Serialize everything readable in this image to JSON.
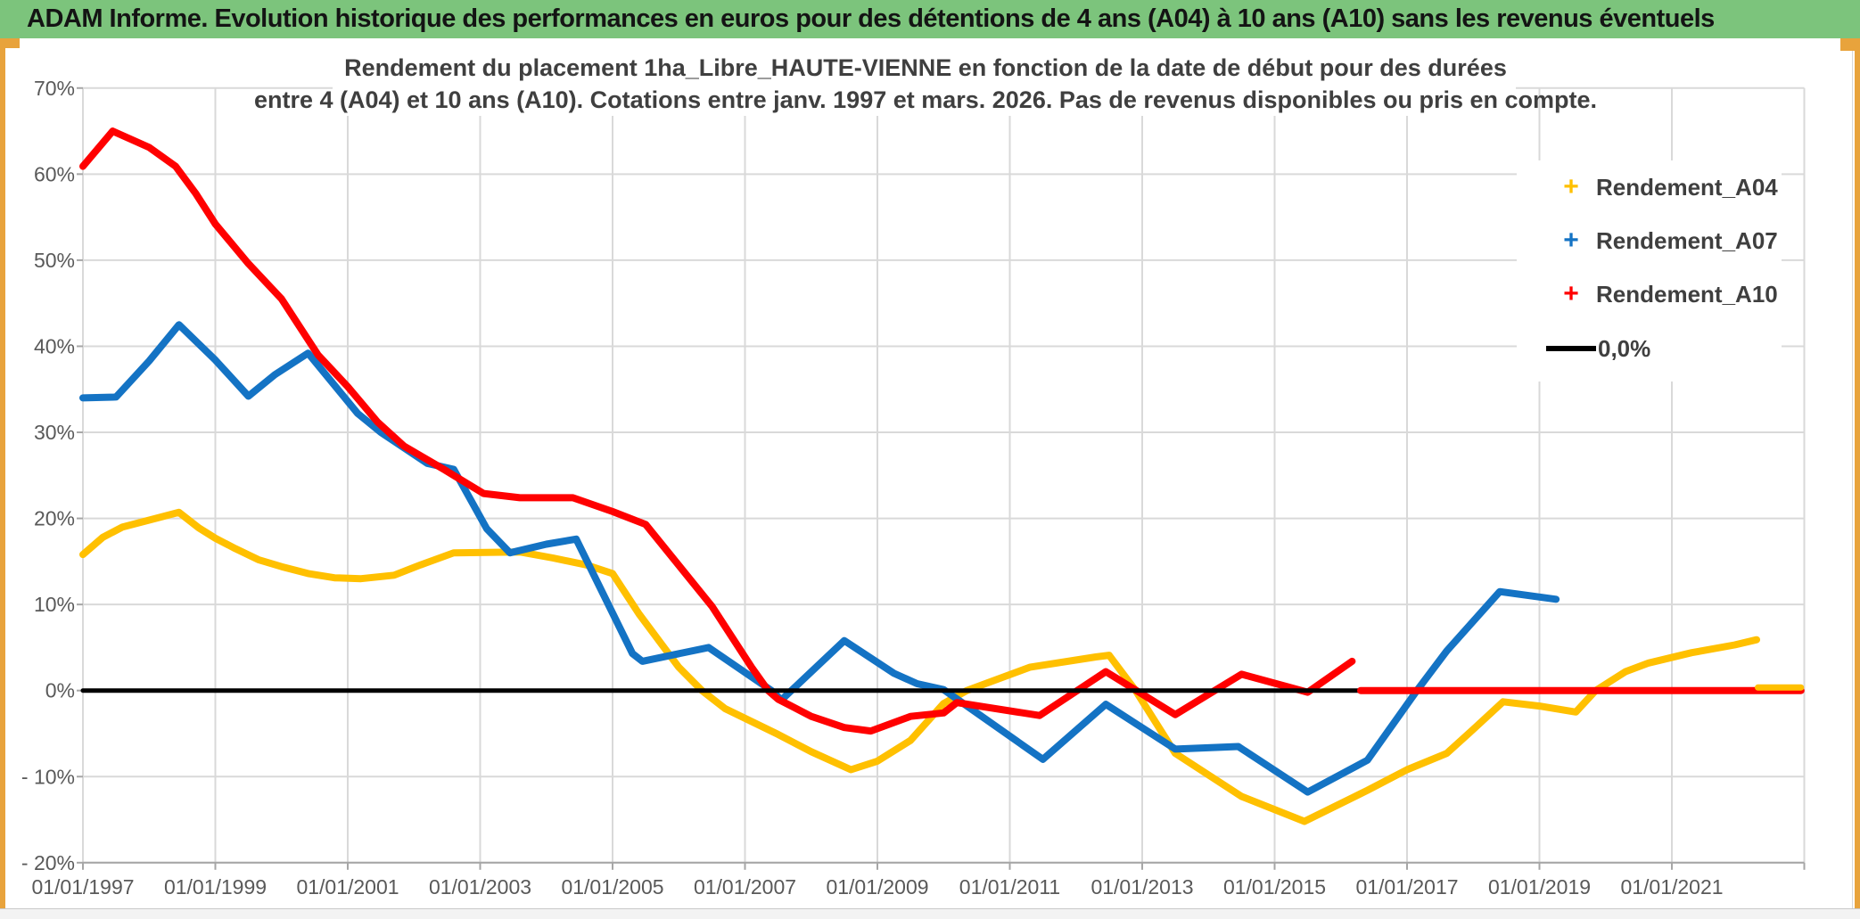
{
  "header": {
    "title": "ADAM Informe. Evolution historique des performances en euros pour des détentions de 4 ans (A04) à 10 ans (A10) sans les revenus éventuels"
  },
  "chart": {
    "title_line1": "Rendement du placement 1ha_Libre_HAUTE-VIENNE en fonction de la date de début pour des durées",
    "title_line2": "entre 4 (A04) et 10 ans (A10). Cotations entre janv. 1997 et mars. 2026. Pas de revenus disponibles ou pris en compte.",
    "legend": [
      {
        "label": "Rendement_A04",
        "color": "#FFC000",
        "marker": "plus"
      },
      {
        "label": "Rendement_A07",
        "color": "#1473C4",
        "marker": "plus"
      },
      {
        "label": "Rendement_A10",
        "color": "#FF0000",
        "marker": "plus"
      },
      {
        "label": "0,0%",
        "color": "#000000",
        "marker": "line"
      }
    ]
  },
  "style": {
    "header_bg": "#7cc47c",
    "gold_edge": "#e8a33c",
    "grid_color": "#d9d9d9",
    "axis_line_color": "#a6a6a6",
    "axis_text_color": "#595959",
    "title_text_color": "#3f3f3f",
    "series_yellow": "#FFC000",
    "series_blue": "#1473C4",
    "series_red": "#FF0000",
    "zero_line_color": "#000000"
  },
  "chart_data": {
    "type": "line",
    "legend_position": "right",
    "grid": true,
    "x_axis": {
      "tick_labels": [
        "01/01/1997",
        "01/01/1999",
        "01/01/2001",
        "01/01/2003",
        "01/01/2005",
        "01/01/2007",
        "01/01/2009",
        "01/01/2011",
        "01/01/2013",
        "01/01/2015",
        "01/01/2017",
        "01/01/2019",
        "01/01/2021"
      ],
      "tick_years": [
        1997,
        1999,
        2001,
        2003,
        2005,
        2007,
        2009,
        2011,
        2013,
        2015,
        2017,
        2019,
        2021
      ],
      "gridline_years": [
        1997,
        1999,
        2001,
        2003,
        2005,
        2007,
        2009,
        2011,
        2013,
        2015,
        2017,
        2019,
        2021,
        2023
      ],
      "range_years": [
        1997.0,
        2023.0
      ]
    },
    "y_axis": {
      "tick_labels": [
        "70%",
        "60%",
        "50%",
        "40%",
        "30%",
        "20%",
        "10%",
        "0%",
        "- 10%",
        "- 20%"
      ],
      "tick_values": [
        70,
        60,
        50,
        40,
        30,
        20,
        10,
        0,
        -10,
        -20
      ],
      "range": [
        -20,
        70
      ],
      "unit": "percent"
    },
    "series": [
      {
        "name": "Rendement_A04",
        "color": "#FFC000",
        "width": 8,
        "points": [
          [
            1997.0,
            15.8
          ],
          [
            1997.3,
            17.8
          ],
          [
            1997.6,
            19.0
          ],
          [
            1998.0,
            19.8
          ],
          [
            1998.45,
            20.7
          ],
          [
            1998.75,
            18.9
          ],
          [
            1999.0,
            17.7
          ],
          [
            1999.3,
            16.5
          ],
          [
            1999.65,
            15.2
          ],
          [
            2000.0,
            14.4
          ],
          [
            2000.4,
            13.6
          ],
          [
            2000.8,
            13.1
          ],
          [
            2001.2,
            13.0
          ],
          [
            2001.7,
            13.4
          ],
          [
            2002.1,
            14.6
          ],
          [
            2002.6,
            16.0
          ],
          [
            2003.6,
            16.1
          ],
          [
            2004.1,
            15.4
          ],
          [
            2004.6,
            14.6
          ],
          [
            2005.0,
            13.6
          ],
          [
            2005.4,
            8.9
          ],
          [
            2006.0,
            2.7
          ],
          [
            2006.35,
            0.0
          ],
          [
            2006.7,
            -2.1
          ],
          [
            2007.5,
            -5.1
          ],
          [
            2008.0,
            -7.1
          ],
          [
            2008.6,
            -9.2
          ],
          [
            2009.0,
            -8.2
          ],
          [
            2009.5,
            -5.8
          ],
          [
            2010.0,
            -1.5
          ],
          [
            2010.35,
            0.0
          ],
          [
            2011.3,
            2.7
          ],
          [
            2012.3,
            3.9
          ],
          [
            2012.5,
            4.1
          ],
          [
            2012.9,
            0.0
          ],
          [
            2013.5,
            -7.3
          ],
          [
            2014.5,
            -12.3
          ],
          [
            2015.45,
            -15.2
          ],
          [
            2016.4,
            -11.6
          ],
          [
            2017.0,
            -9.2
          ],
          [
            2017.6,
            -7.3
          ],
          [
            2018.0,
            -4.5
          ],
          [
            2018.45,
            -1.3
          ],
          [
            2019.0,
            -1.8
          ],
          [
            2019.55,
            -2.5
          ],
          [
            2019.85,
            0.0
          ],
          [
            2020.3,
            2.2
          ],
          [
            2020.65,
            3.2
          ],
          [
            2021.3,
            4.4
          ],
          [
            2021.95,
            5.3
          ],
          [
            2022.28,
            5.9
          ]
        ]
      },
      {
        "name": "Rendement_A07",
        "color": "#1473C4",
        "width": 8,
        "points": [
          [
            1997.0,
            34.0
          ],
          [
            1997.5,
            34.1
          ],
          [
            1998.0,
            38.3
          ],
          [
            1998.45,
            42.5
          ],
          [
            1999.0,
            38.4
          ],
          [
            1999.5,
            34.2
          ],
          [
            1999.9,
            36.7
          ],
          [
            2000.4,
            39.2
          ],
          [
            2001.15,
            32.2
          ],
          [
            2001.5,
            30.0
          ],
          [
            2002.2,
            26.4
          ],
          [
            2002.6,
            25.7
          ],
          [
            2003.1,
            18.8
          ],
          [
            2003.45,
            16.0
          ],
          [
            2004.0,
            17.0
          ],
          [
            2004.45,
            17.6
          ],
          [
            2005.3,
            4.3
          ],
          [
            2005.45,
            3.4
          ],
          [
            2006.45,
            5.0
          ],
          [
            2007.4,
            0.0
          ],
          [
            2007.55,
            -1.1
          ],
          [
            2008.5,
            5.8
          ],
          [
            2009.25,
            2.0
          ],
          [
            2009.6,
            0.8
          ],
          [
            2010.0,
            0.1
          ],
          [
            2011.5,
            -8.0
          ],
          [
            2012.45,
            -1.6
          ],
          [
            2013.5,
            -6.8
          ],
          [
            2014.45,
            -6.5
          ],
          [
            2015.5,
            -11.8
          ],
          [
            2016.4,
            -8.1
          ],
          [
            2017.15,
            0.0
          ],
          [
            2017.6,
            4.6
          ],
          [
            2018.4,
            11.5
          ],
          [
            2019.25,
            10.6
          ]
        ]
      },
      {
        "name": "Rendement_A10",
        "color": "#FF0000",
        "width": 8,
        "points": [
          [
            1997.0,
            60.9
          ],
          [
            1997.45,
            65.0
          ],
          [
            1998.0,
            63.1
          ],
          [
            1998.4,
            60.9
          ],
          [
            1998.7,
            57.8
          ],
          [
            1999.0,
            54.2
          ],
          [
            1999.5,
            49.6
          ],
          [
            2000.0,
            45.5
          ],
          [
            2000.55,
            39.0
          ],
          [
            2001.0,
            35.3
          ],
          [
            2001.45,
            31.2
          ],
          [
            2001.85,
            28.4
          ],
          [
            2002.45,
            25.7
          ],
          [
            2003.05,
            22.9
          ],
          [
            2003.6,
            22.4
          ],
          [
            2004.4,
            22.4
          ],
          [
            2005.0,
            20.8
          ],
          [
            2005.5,
            19.3
          ],
          [
            2006.5,
            9.8
          ],
          [
            2007.1,
            2.7
          ],
          [
            2007.35,
            0.0
          ],
          [
            2007.5,
            -1.0
          ],
          [
            2008.0,
            -3.0
          ],
          [
            2008.5,
            -4.3
          ],
          [
            2008.9,
            -4.7
          ],
          [
            2009.5,
            -3.0
          ],
          [
            2010.0,
            -2.6
          ],
          [
            2010.2,
            -1.4
          ],
          [
            2011.45,
            -2.9
          ],
          [
            2012.45,
            2.2
          ],
          [
            2013.5,
            -2.8
          ],
          [
            2014.5,
            1.9
          ],
          [
            2015.5,
            -0.2
          ],
          [
            2016.17,
            3.4
          ]
        ]
      },
      {
        "name": "zero-baseline (0,0%)",
        "color": "#000000",
        "width": 5,
        "points": [
          [
            1997.0,
            0.0
          ],
          [
            2022.95,
            0.0
          ]
        ]
      },
      {
        "name": "Rendement_A10 flat tail at 0%",
        "color": "#FF0000",
        "width": 8,
        "points": [
          [
            2016.3,
            0.0
          ],
          [
            2022.95,
            0.0
          ]
        ]
      },
      {
        "name": "Rendement_A04 flat tail at 0%",
        "color": "#FFC000",
        "width": 7,
        "points": [
          [
            2022.3,
            0.35
          ],
          [
            2022.95,
            0.35
          ]
        ]
      }
    ]
  }
}
